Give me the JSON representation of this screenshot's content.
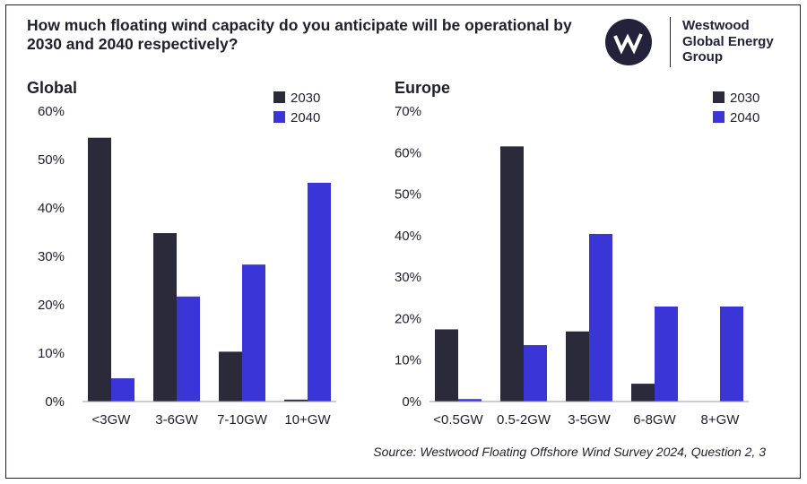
{
  "title": "How much floating wind capacity do you anticipate will be operational by 2030 and 2040 respectively?",
  "logo": {
    "icon": "westwood-w-icon",
    "text": "Westwood\nGlobal Energy\nGroup"
  },
  "source": "Source: Westwood Floating Offshore Wind Survey 2024, Question 2, 3",
  "colors": {
    "series_2030": "#2a2a3a",
    "series_2040": "#3a35d6",
    "text": "#1f1f2e"
  },
  "chart_data": [
    {
      "type": "bar",
      "title": "Global",
      "categories": [
        "<3GW",
        "3-6GW",
        "7-10GW",
        "10+GW"
      ],
      "series": [
        {
          "name": "2030",
          "values": [
            54.5,
            34.8,
            10.3,
            0.4
          ]
        },
        {
          "name": "2040",
          "values": [
            4.8,
            21.7,
            28.3,
            45.2
          ]
        }
      ],
      "ylim": [
        0,
        60
      ],
      "yticks": [
        0,
        10,
        20,
        30,
        40,
        50,
        60
      ],
      "ytick_labels": [
        "0%",
        "10%",
        "20%",
        "30%",
        "40%",
        "50%",
        "60%"
      ],
      "xlabel": "",
      "ylabel": "",
      "legend": "top-right"
    },
    {
      "type": "bar",
      "title": "Europe",
      "categories": [
        "<0.5GW",
        "0.5-2GW",
        "3-5GW",
        "6-8GW",
        "8+GW"
      ],
      "series": [
        {
          "name": "2030",
          "values": [
            17.4,
            61.5,
            16.9,
            4.3,
            0
          ]
        },
        {
          "name": "2040",
          "values": [
            0.6,
            13.6,
            40.4,
            22.9,
            22.9
          ]
        }
      ],
      "ylim": [
        0,
        70
      ],
      "yticks": [
        0,
        10,
        20,
        30,
        40,
        50,
        60,
        70
      ],
      "ytick_labels": [
        "0%",
        "10%",
        "20%",
        "30%",
        "40%",
        "50%",
        "60%",
        "70%"
      ],
      "xlabel": "",
      "ylabel": "",
      "legend": "top-right"
    }
  ]
}
